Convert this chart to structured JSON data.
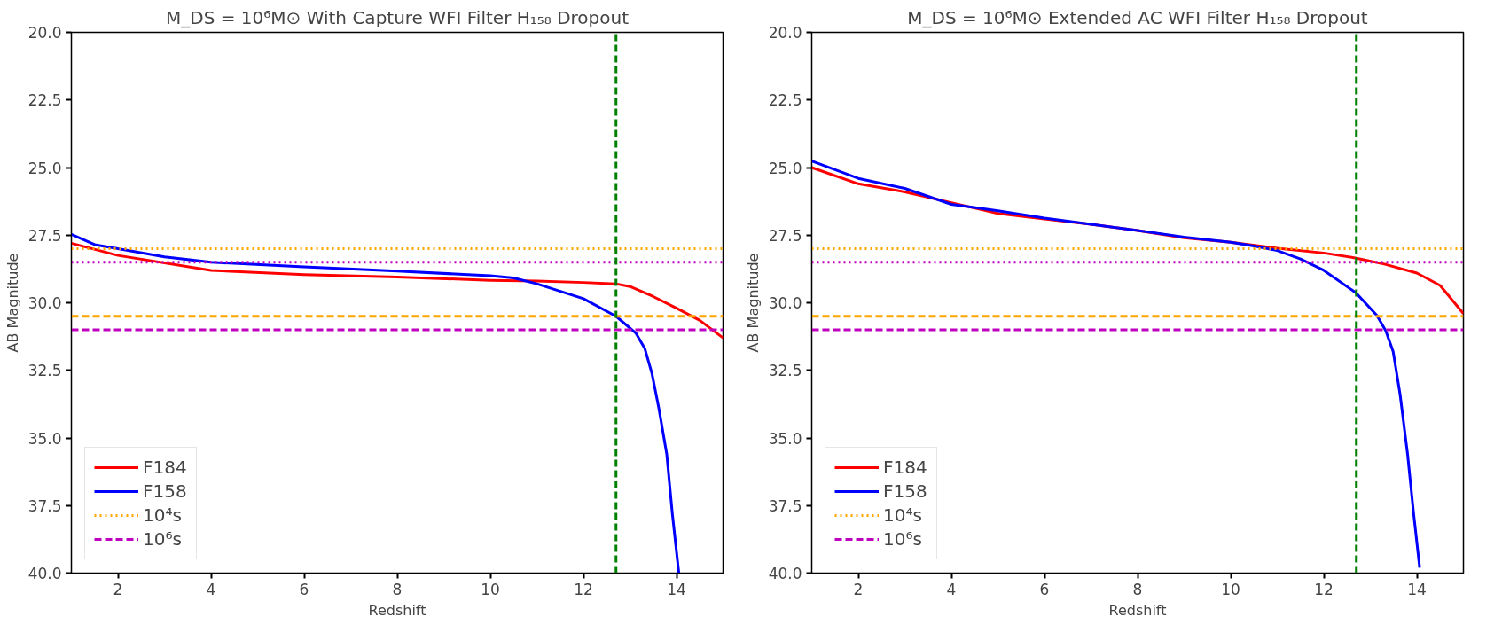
{
  "chart_data": [
    {
      "type": "line",
      "title": "M_DS = 10⁶M⊙ With Capture WFI Filter H₁₅₈ Dropout",
      "xlabel": "Redshift",
      "ylabel": "AB Magnitude",
      "xlim": [
        1,
        15
      ],
      "xticks": [
        2,
        4,
        6,
        8,
        10,
        12,
        14
      ],
      "ylim": [
        40,
        20
      ],
      "yticks": [
        {
          "value": 20,
          "label": "20.0"
        },
        22.5,
        {
          "value": 25,
          "label": "25.0"
        },
        27.5,
        {
          "value": 30,
          "label": "30.0"
        },
        32.5,
        {
          "value": 35,
          "label": "35.0"
        },
        37.5,
        {
          "value": 40,
          "label": "40.0"
        }
      ],
      "grid": false,
      "legend": "bottom left",
      "series": [
        {
          "name": "F184",
          "color": "#ff0000",
          "x": [
            1,
            2,
            4,
            6,
            8,
            10,
            11,
            12,
            12.7,
            13,
            13.5,
            14,
            14.5,
            15
          ],
          "values": [
            27.8,
            28.25,
            28.8,
            28.96,
            29.05,
            29.17,
            29.2,
            29.25,
            29.3,
            29.4,
            29.77,
            30.2,
            30.65,
            31.3
          ]
        },
        {
          "name": "F158",
          "color": "#0000ff",
          "x": [
            1,
            1.5,
            2,
            3,
            4,
            6,
            8,
            10,
            10.5,
            11,
            12,
            12.7,
            13.13,
            13.32,
            13.47,
            13.62,
            13.79,
            13.91,
            14.05
          ],
          "values": [
            27.47,
            27.85,
            28.0,
            28.3,
            28.5,
            28.67,
            28.83,
            29.0,
            29.08,
            29.3,
            29.85,
            30.5,
            31.13,
            31.7,
            32.6,
            33.9,
            35.6,
            37.8,
            40.0
          ]
        }
      ],
      "ref_lines": [
        {
          "axis": "y",
          "value": 28.0,
          "label": "10⁴s",
          "color": "#ffa500",
          "line_style": "dotted"
        },
        {
          "axis": "y",
          "value": 28.5,
          "color": "#bf00bf",
          "line_style": "dotted"
        },
        {
          "axis": "y",
          "value": 30.5,
          "color": "#ffa500",
          "line_style": "dashed"
        },
        {
          "axis": "y",
          "value": 31.0,
          "label": "10⁶s",
          "color": "#bf00bf",
          "line_style": "dashed"
        },
        {
          "axis": "x",
          "value": 12.7,
          "color": "#008000",
          "line_style": "dashed"
        }
      ]
    },
    {
      "type": "line",
      "title": "M_DS = 10⁶M⊙ Extended AC WFI Filter H₁₅₈ Dropout",
      "xlabel": "Redshift",
      "ylabel": "AB Magnitude",
      "xlim": [
        1,
        15
      ],
      "xticks": [
        2,
        4,
        6,
        8,
        10,
        12,
        14
      ],
      "ylim": [
        40,
        20
      ],
      "yticks": [
        {
          "value": 20,
          "label": "20.0"
        },
        22.5,
        {
          "value": 25,
          "label": "25.0"
        },
        27.5,
        {
          "value": 30,
          "label": "30.0"
        },
        32.5,
        {
          "value": 35,
          "label": "35.0"
        },
        37.5,
        {
          "value": 40,
          "label": "40.0"
        }
      ],
      "grid": false,
      "legend": "bottom left",
      "series": [
        {
          "name": "F184",
          "color": "#ff0000",
          "x": [
            1,
            2,
            3,
            4,
            5,
            6,
            7,
            8,
            9,
            10,
            11,
            12,
            12.7,
            13.3,
            14,
            14.5,
            15
          ],
          "values": [
            25.0,
            25.6,
            25.9,
            26.3,
            26.7,
            26.9,
            27.1,
            27.33,
            27.6,
            27.76,
            27.98,
            28.16,
            28.35,
            28.57,
            28.9,
            29.36,
            30.4
          ]
        },
        {
          "name": "F158",
          "color": "#0000ff",
          "x": [
            1,
            2,
            3,
            4,
            5,
            6,
            7,
            8,
            9,
            10,
            10.5,
            11,
            11.5,
            12,
            12.69,
            13.14,
            13.33,
            13.49,
            13.64,
            13.8,
            13.93,
            14.06
          ],
          "values": [
            24.76,
            25.4,
            25.77,
            26.36,
            26.6,
            26.87,
            27.1,
            27.33,
            27.57,
            27.76,
            27.9,
            28.07,
            28.38,
            28.8,
            29.63,
            30.47,
            31.03,
            31.8,
            33.4,
            35.6,
            37.8,
            39.8
          ]
        }
      ],
      "ref_lines": [
        {
          "axis": "y",
          "value": 28.0,
          "label": "10⁴s",
          "color": "#ffa500",
          "line_style": "dotted"
        },
        {
          "axis": "y",
          "value": 28.5,
          "color": "#bf00bf",
          "line_style": "dotted"
        },
        {
          "axis": "y",
          "value": 30.5,
          "color": "#ffa500",
          "line_style": "dashed"
        },
        {
          "axis": "y",
          "value": 31.0,
          "label": "10⁶s",
          "color": "#bf00bf",
          "line_style": "dashed"
        },
        {
          "axis": "x",
          "value": 12.7,
          "color": "#008000",
          "line_style": "dashed"
        }
      ]
    }
  ]
}
